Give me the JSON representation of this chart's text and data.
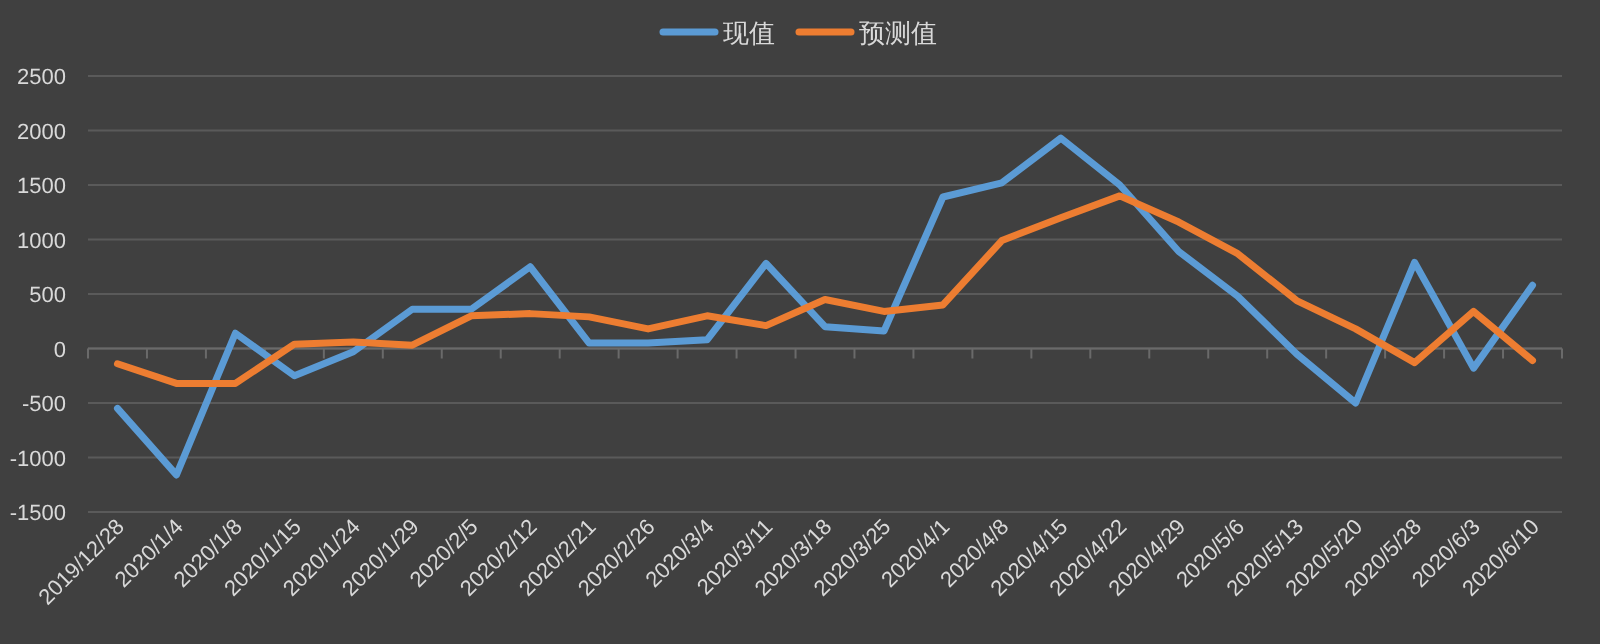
{
  "chart_data": {
    "type": "line",
    "categories": [
      "2019/12/28",
      "2020/1/4",
      "2020/1/8",
      "2020/1/15",
      "2020/1/24",
      "2020/1/29",
      "2020/2/5",
      "2020/2/12",
      "2020/2/21",
      "2020/2/26",
      "2020/3/4",
      "2020/3/11",
      "2020/3/18",
      "2020/3/25",
      "2020/4/1",
      "2020/4/8",
      "2020/4/15",
      "2020/4/22",
      "2020/4/29",
      "2020/5/6",
      "2020/5/13",
      "2020/5/20",
      "2020/5/28",
      "2020/6/3",
      "2020/6/10"
    ],
    "series": [
      {
        "name": "现值",
        "color": "#5b9bd5",
        "values": [
          -550,
          -1160,
          140,
          -250,
          -30,
          360,
          360,
          750,
          50,
          50,
          80,
          780,
          200,
          160,
          1390,
          1520,
          1930,
          1500,
          890,
          480,
          -50,
          -500,
          790,
          -180,
          580
        ]
      },
      {
        "name": "预测值",
        "color": "#ed7d31",
        "values": [
          -140,
          -320,
          -320,
          40,
          60,
          30,
          300,
          320,
          290,
          180,
          300,
          210,
          450,
          340,
          400,
          990,
          1200,
          1400,
          1160,
          870,
          440,
          180,
          -130,
          340,
          -110
        ]
      }
    ],
    "ylim": [
      -1500,
      2500
    ],
    "yticks": [
      -1500,
      -1000,
      -500,
      0,
      500,
      1000,
      1500,
      2000,
      2500
    ],
    "grid": "y",
    "legend": "top",
    "marker": "none",
    "line_style": "solid"
  }
}
